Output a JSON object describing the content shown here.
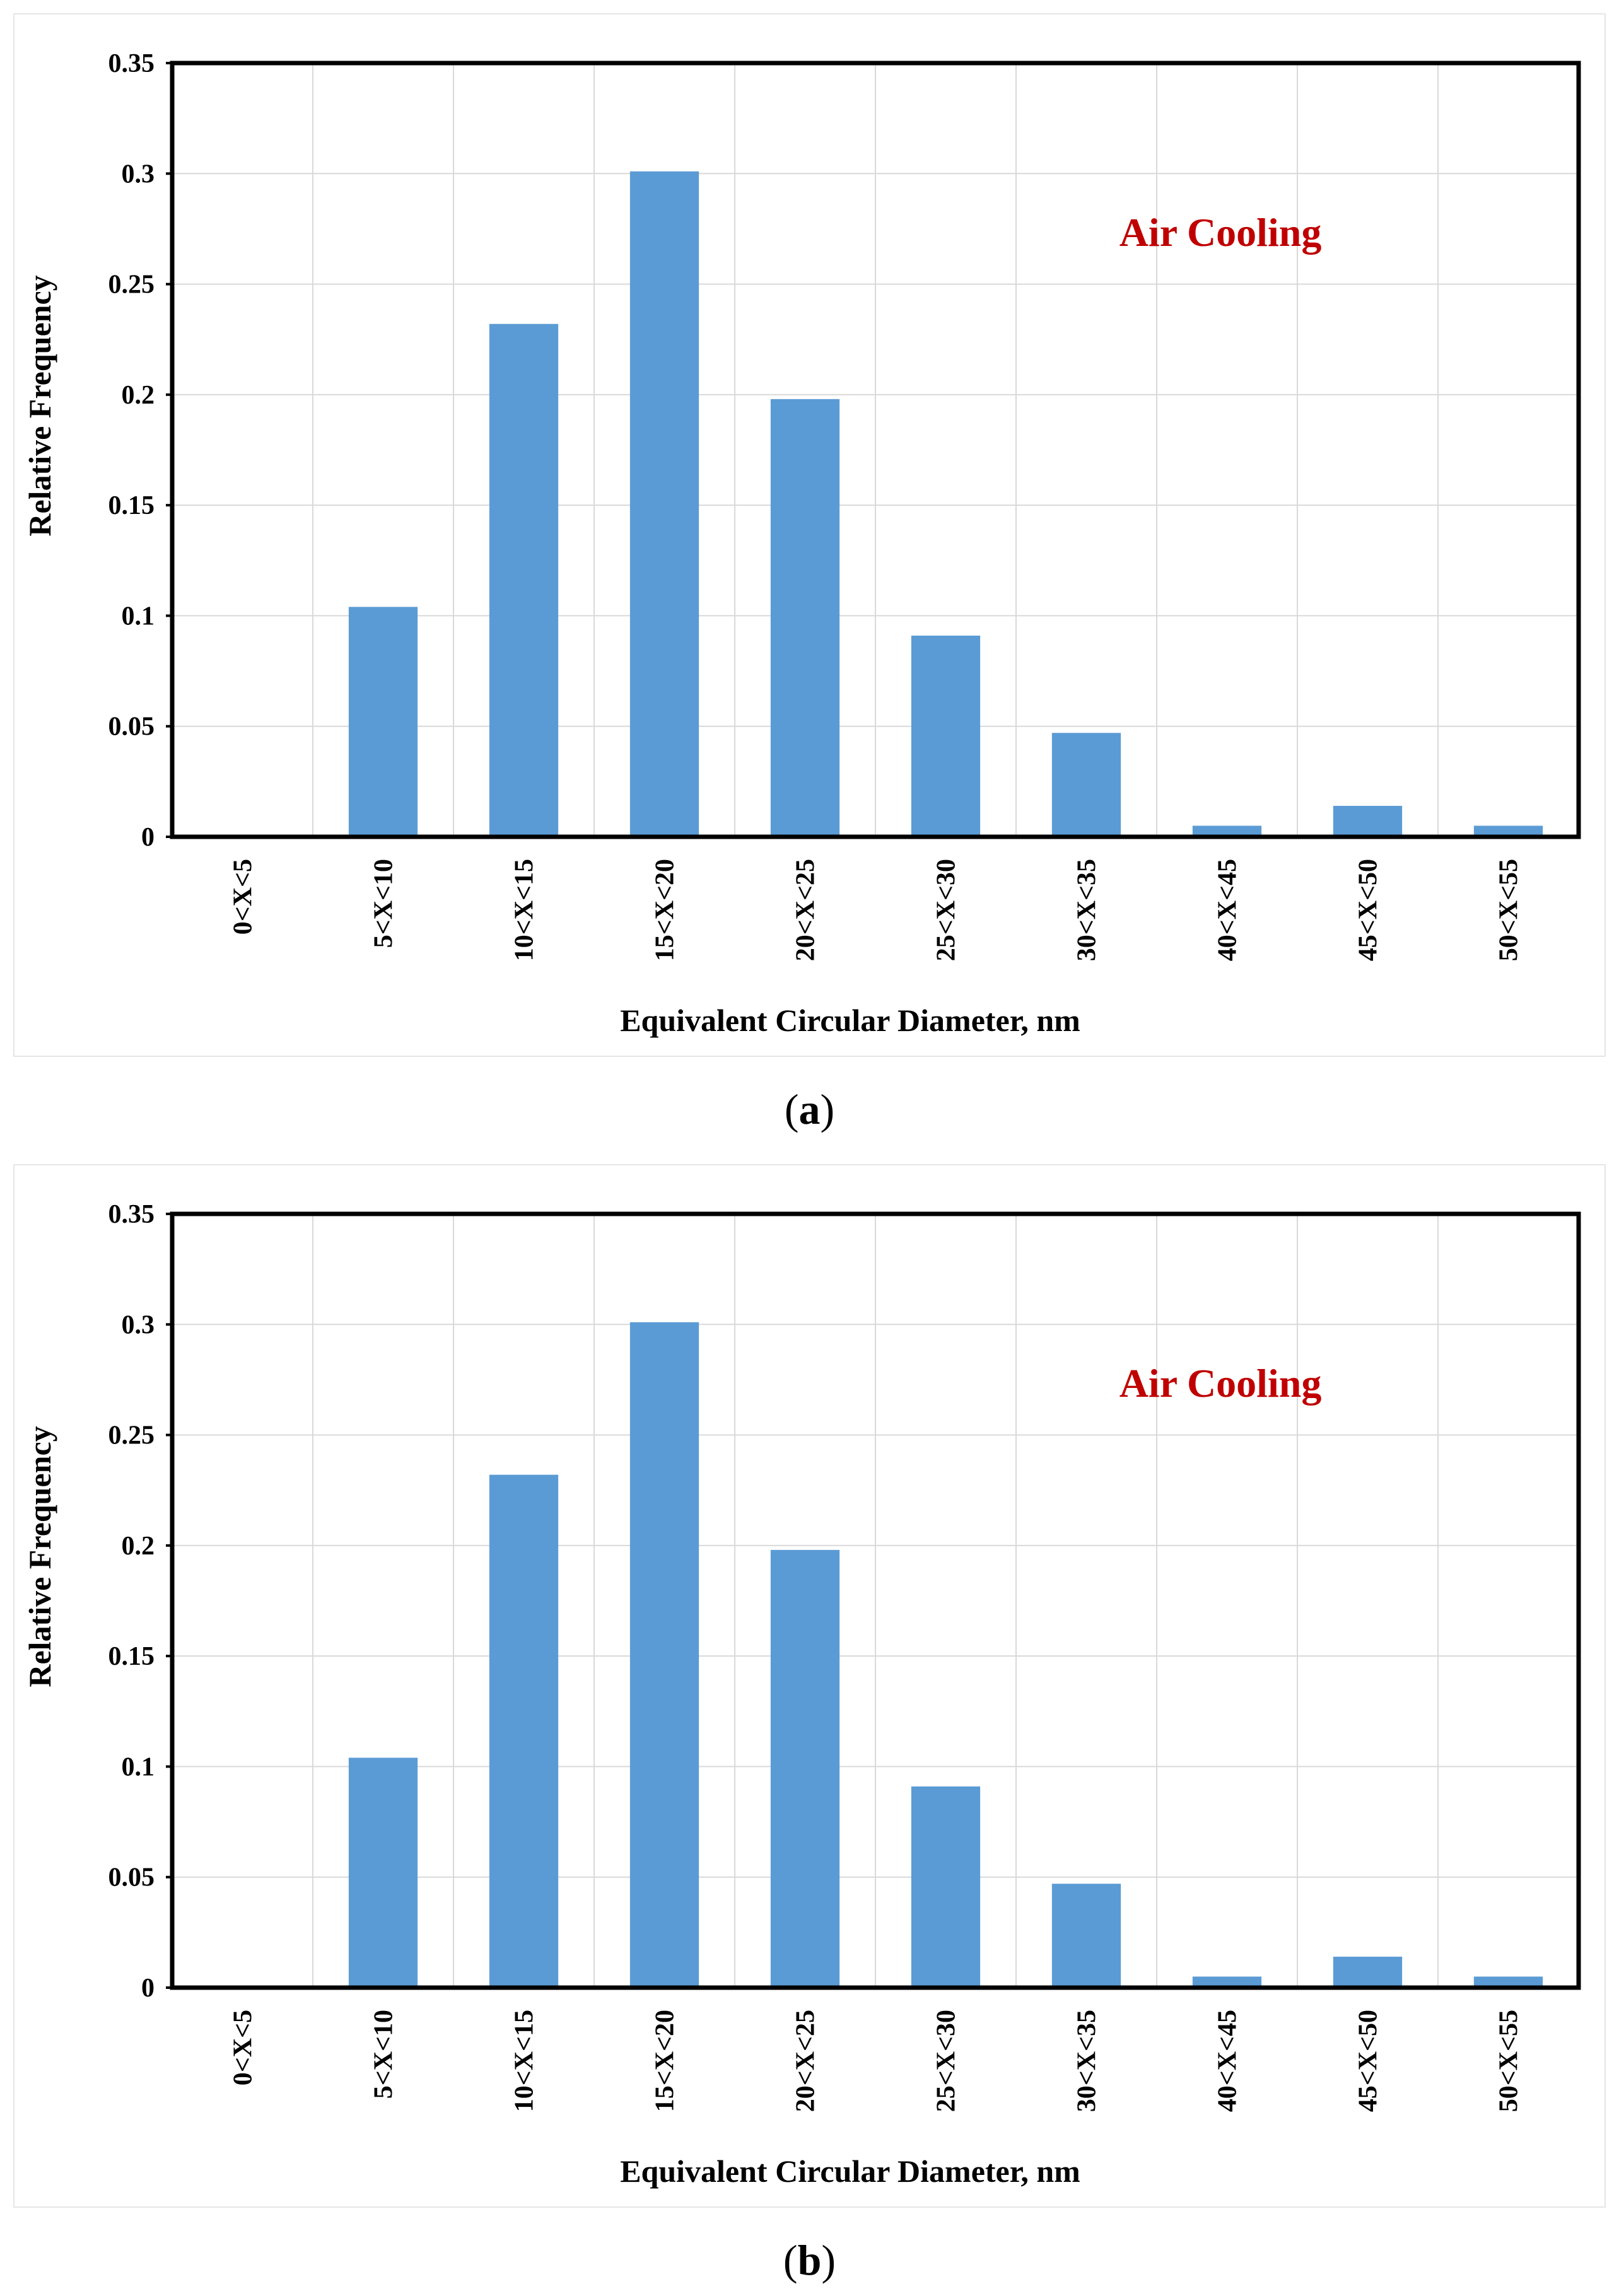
{
  "chart_data": [
    {
      "type": "bar",
      "categories": [
        "0<X<5",
        "5<X<10",
        "10<X<15",
        "15<X<20",
        "20<X<25",
        "25<X<30",
        "30<X<35",
        "40<X<45",
        "45<X<50",
        "50<X<55"
      ],
      "values": [
        0,
        0.104,
        0.232,
        0.301,
        0.198,
        0.091,
        0.047,
        0.005,
        0.014,
        0.005
      ],
      "title": "",
      "annotation": "Air Cooling",
      "xlabel": "Equivalent Circular Diameter, nm",
      "ylabel": "Relative Frequency",
      "ylim": [
        0,
        0.35
      ],
      "yticks": [
        0,
        0.05,
        0.1,
        0.15,
        0.2,
        0.25,
        0.3,
        0.35
      ],
      "ytick_labels": [
        "0",
        "0.05",
        "0.1",
        "0.15",
        "0.2",
        "0.25",
        "0.3",
        "0.35"
      ],
      "grid": true,
      "bar_color": "#5b9bd5",
      "annotation_color": "#c00000"
    },
    {
      "type": "bar",
      "categories": [
        "0<X<5",
        "5<X<10",
        "10<X<15",
        "15<X<20",
        "20<X<25",
        "25<X<30",
        "30<X<35",
        "40<X<45",
        "45<X<50",
        "50<X<55"
      ],
      "values": [
        0,
        0.104,
        0.232,
        0.301,
        0.198,
        0.091,
        0.047,
        0.005,
        0.014,
        0.005
      ],
      "title": "",
      "annotation": "Air Cooling",
      "xlabel": "Equivalent Circular Diameter, nm",
      "ylabel": "Relative Frequency",
      "ylim": [
        0,
        0.35
      ],
      "yticks": [
        0,
        0.05,
        0.1,
        0.15,
        0.2,
        0.25,
        0.3,
        0.35
      ],
      "ytick_labels": [
        "0",
        "0.05",
        "0.1",
        "0.15",
        "0.2",
        "0.25",
        "0.3",
        "0.35"
      ],
      "grid": true,
      "bar_color": "#5b9bd5",
      "annotation_color": "#c00000"
    }
  ],
  "captions": {
    "a": {
      "open": "(",
      "letter": "a",
      "close": ")"
    },
    "b": {
      "open": "(",
      "letter": "b",
      "close": ")"
    }
  }
}
